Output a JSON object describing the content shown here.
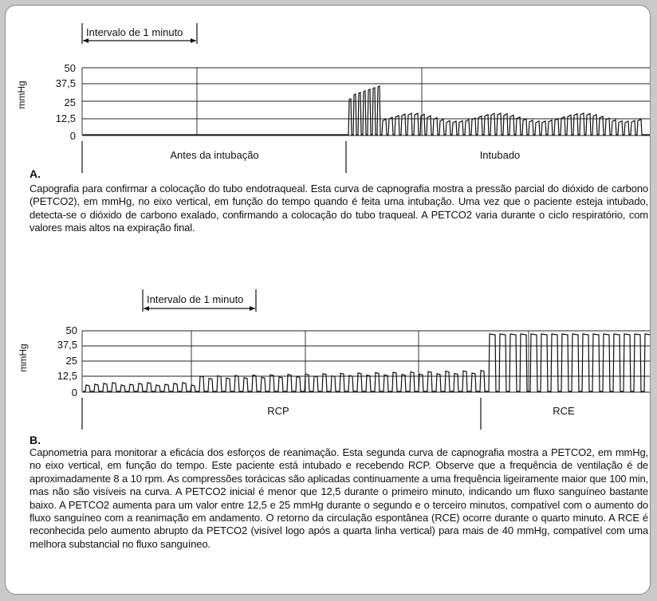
{
  "figure_a": {
    "label": "A.",
    "interval_label": "Intervalo de 1 minuto",
    "y_unit": "mmHg",
    "y_ticks": [
      "50",
      "37,5",
      "25",
      "12,5",
      "0"
    ],
    "phase_labels": [
      "Antes da intubação",
      "Intubado"
    ],
    "caption": "Capografia para confirmar a colocação do tubo endotraqueal. Esta curva de capnografia mostra a pressão parcial do dióxido de carbono (PETCO2), em mmHg, no eixo vertical, em função do tempo quando é feita uma intubação. Uma vez que o paciente esteja intubado, detecta-se o dióxido de carbono exalado, confirmando a colocação do tubo traqueal. A PETCO2 varia durante o ciclo respiratório, com valores mais altos na expiração final."
  },
  "figure_b": {
    "label": "B.",
    "interval_label": "Intervalo de 1 minuto",
    "y_unit": "mmHg",
    "y_ticks": [
      "50",
      "37,5",
      "25",
      "12,5",
      "0"
    ],
    "phase_labels": [
      "RCP",
      "RCE"
    ],
    "caption": "Capnometria para monitorar a eficácia dos esforços de reanimação. Esta segunda curva de capnografia mostra a PETCO2, em mmHg, no eixo vertical, em função do tempo. Este paciente está intubado e recebendo RCP. Observe que a frequência de ventilação é de aproximadamente 8 a 10 rpm. As compressões torácicas são aplicadas continuamente a uma frequência ligeiramente maior que 100 min, mas não são visíveis na curva. A PETCO2 inicial é menor que 12,5 durante o primeiro minuto, indicando um fluxo sanguíneo bastante baixo. A PETCO2 aumenta para um valor entre 12,5 e 25 mmHg durante o segundo e o terceiro minutos, compatível com o aumento do fluxo sanguíneo com a reanimação em andamento. O retorno da circulação espontânea (RCE) ocorre durante o quarto minuto. A RCE é reconhecida pelo aumento abrupto da PETCO2 (visível logo após a quarta linha vertical) para mais de 40 mmHg, compatível com uma melhora substancial no fluxo sanguíneo."
  },
  "colors": {
    "background": "#c9c9c9",
    "panel": "#ffffff",
    "ink": "#111111"
  }
}
